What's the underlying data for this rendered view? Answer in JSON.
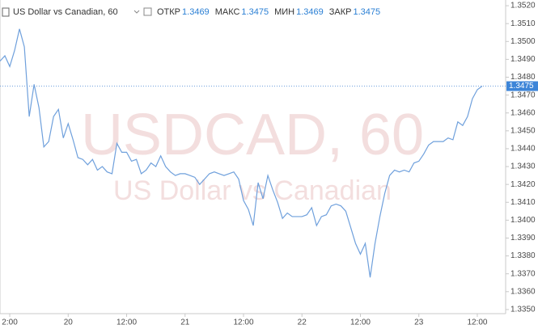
{
  "chart_data": {
    "type": "line",
    "title": "US Dollar vs Canadian, 60",
    "watermark": [
      "USDCAD, 60",
      "US Dollar vs Canadian"
    ],
    "ohlc": [
      {
        "label": "ОТКР",
        "value": 1.3469
      },
      {
        "label": "МАКС",
        "value": 1.3475
      },
      {
        "label": "МИН",
        "value": 1.3469
      },
      {
        "label": "ЗАКР",
        "value": 1.3475
      }
    ],
    "last_price": {
      "value": 1.3475,
      "label": "1.3475"
    },
    "categories": [
      null,
      null,
      "2:00",
      null,
      null,
      null,
      null,
      null,
      null,
      null,
      null,
      null,
      null,
      null,
      "20",
      null,
      null,
      null,
      null,
      null,
      null,
      null,
      null,
      null,
      null,
      null,
      "12:00",
      null,
      null,
      null,
      null,
      null,
      null,
      null,
      null,
      null,
      null,
      null,
      "21",
      null,
      null,
      null,
      null,
      null,
      null,
      null,
      null,
      null,
      null,
      null,
      "12:00",
      null,
      null,
      null,
      null,
      null,
      null,
      null,
      null,
      null,
      null,
      null,
      "22",
      null,
      null,
      null,
      null,
      null,
      null,
      null,
      null,
      null,
      null,
      null,
      "12:00",
      null,
      null,
      null,
      null,
      null,
      null,
      null,
      null,
      null,
      null,
      null,
      "23",
      null,
      null,
      null,
      null,
      null,
      null,
      null,
      null,
      null,
      null,
      null,
      "12:00",
      null
    ],
    "series": [
      {
        "name": "USDCAD",
        "color": "#6fa0dc",
        "values": [
          1.3489,
          1.3492,
          1.3486,
          1.3495,
          1.3507,
          1.3497,
          1.3458,
          1.3476,
          1.3463,
          1.3441,
          1.3444,
          1.3458,
          1.3462,
          1.3446,
          1.3454,
          1.3445,
          1.3435,
          1.3434,
          1.3431,
          1.3434,
          1.3428,
          1.343,
          1.3427,
          1.3426,
          1.3443,
          1.3438,
          1.3438,
          1.3433,
          1.3434,
          1.3426,
          1.3428,
          1.3432,
          1.343,
          1.3436,
          1.343,
          1.3427,
          1.3425,
          1.3426,
          1.3426,
          1.3425,
          1.3424,
          1.342,
          1.3423,
          1.3426,
          1.3427,
          1.3426,
          1.3425,
          1.3426,
          1.3427,
          1.3423,
          1.3411,
          1.3406,
          1.3397,
          1.3421,
          1.3412,
          1.3425,
          1.3417,
          1.341,
          1.3401,
          1.3404,
          1.3402,
          1.3402,
          1.3402,
          1.3403,
          1.3407,
          1.3397,
          1.3402,
          1.3403,
          1.3408,
          1.3409,
          1.3408,
          1.3405,
          1.3396,
          1.3387,
          1.3381,
          1.3387,
          1.3368,
          1.3387,
          1.3402,
          1.3415,
          1.3425,
          1.3428,
          1.3427,
          1.3428,
          1.3427,
          1.3432,
          1.3433,
          1.3437,
          1.3442,
          1.3444,
          1.3444,
          1.3444,
          1.3446,
          1.3445,
          1.3455,
          1.3453,
          1.3458,
          1.3468,
          1.3473,
          1.3475
        ]
      }
    ],
    "ylim": [
      1.33477,
      1.35232
    ],
    "yticks": [
      {
        "value": 1.335,
        "label": "1.3350"
      },
      {
        "value": 1.336,
        "label": "1.3360"
      },
      {
        "value": 1.337,
        "label": "1.3370"
      },
      {
        "value": 1.338,
        "label": "1.3380"
      },
      {
        "value": 1.339,
        "label": "1.3390"
      },
      {
        "value": 1.34,
        "label": "1.3400"
      },
      {
        "value": 1.341,
        "label": "1.3410"
      },
      {
        "value": 1.342,
        "label": "1.3420"
      },
      {
        "value": 1.343,
        "label": "1.3430"
      },
      {
        "value": 1.344,
        "label": "1.3440"
      },
      {
        "value": 1.345,
        "label": "1.3450"
      },
      {
        "value": 1.346,
        "label": "1.3460"
      },
      {
        "value": 1.347,
        "label": "1.3470"
      },
      {
        "value": 1.348,
        "label": "1.3480"
      },
      {
        "value": 1.349,
        "label": "1.3490"
      },
      {
        "value": 1.35,
        "label": "1.3500"
      },
      {
        "value": 1.351,
        "label": "1.3510"
      },
      {
        "value": 1.352,
        "label": "1.3520"
      }
    ],
    "grid": false
  }
}
